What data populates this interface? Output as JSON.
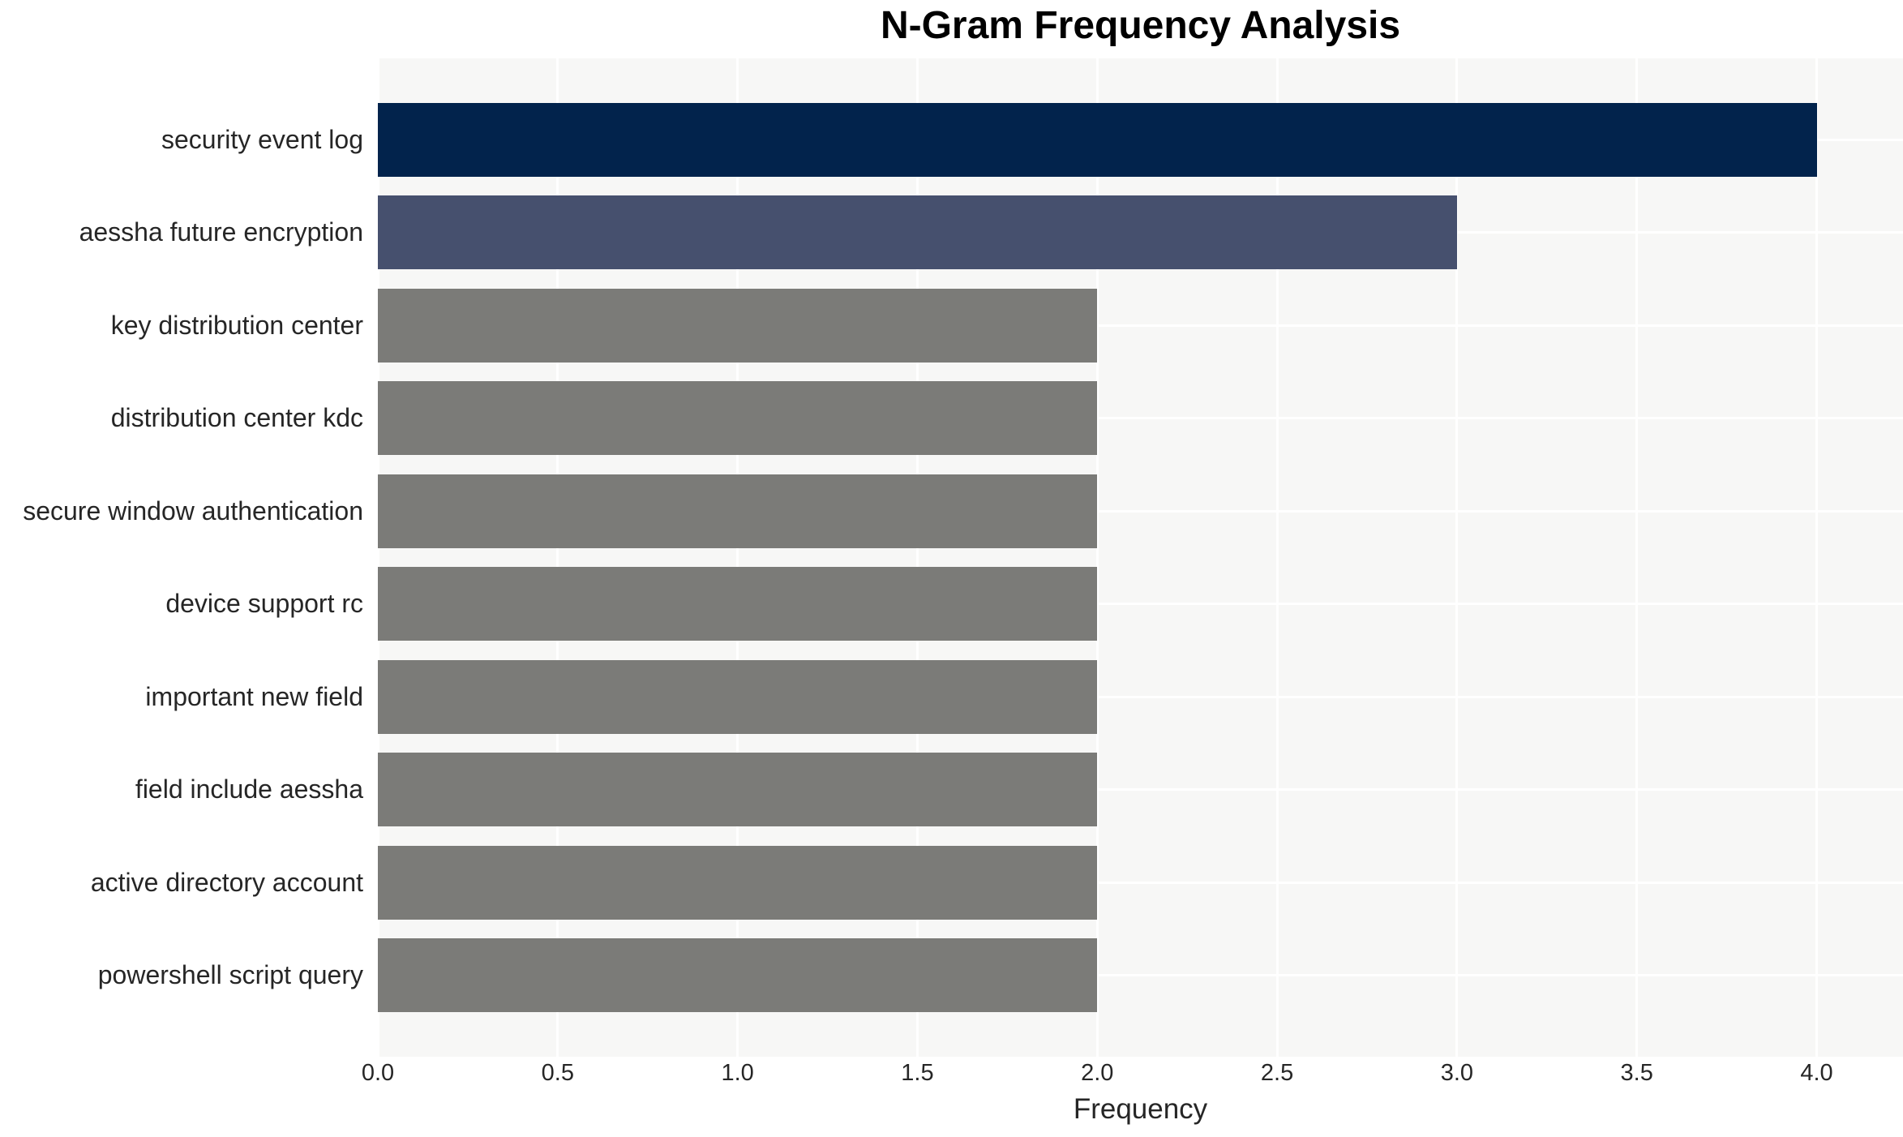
{
  "chart_data": {
    "type": "bar",
    "orientation": "horizontal",
    "title": "N-Gram Frequency Analysis",
    "xlabel": "Frequency",
    "ylabel": "",
    "categories": [
      "security event log",
      "aessha future encryption",
      "key distribution center",
      "distribution center kdc",
      "secure window authentication",
      "device support rc",
      "important new field",
      "field include aessha",
      "active directory account",
      "powershell script query"
    ],
    "values": [
      4,
      3,
      2,
      2,
      2,
      2,
      2,
      2,
      2,
      2
    ],
    "bar_colors": [
      "#02234c",
      "#46506e",
      "#7b7b78",
      "#7b7b78",
      "#7b7b78",
      "#7b7b78",
      "#7b7b78",
      "#7b7b78",
      "#7b7b78",
      "#7b7b78"
    ],
    "xlim": [
      0,
      4.24
    ],
    "xtick_values": [
      0,
      0.5,
      1,
      1.5,
      2,
      2.5,
      3,
      3.5,
      4
    ],
    "xtick_labels": [
      "0.0",
      "0.5",
      "1.0",
      "1.5",
      "2.0",
      "2.5",
      "3.0",
      "3.5",
      "4.0"
    ],
    "grid": true,
    "grid_color": "#ffffff",
    "plot_background": "#f7f7f6",
    "text_color": "#262626",
    "legend": false
  }
}
